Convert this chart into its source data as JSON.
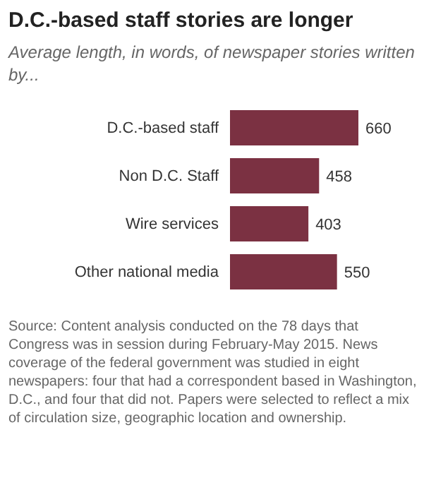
{
  "chart_data": {
    "type": "bar",
    "orientation": "horizontal",
    "title": "D.C.-based staff stories are longer",
    "subtitle": "Average length, in words, of newspaper stories written by...",
    "categories": [
      "D.C.-based staff",
      "Non D.C. Staff",
      "Wire services",
      "Other national media"
    ],
    "values": [
      660,
      458,
      403,
      550
    ],
    "color": "#7b3142",
    "data_labels": true,
    "annotations": [
      "Source: Content analysis conducted on the 78 days that Congress was in session during February-May 2015. News coverage of the federal government was studied in eight newspapers: four that had a correspondent based in Washington, D.C., and four that did not. Papers were selected to reflect a mix of circulation size, geographic location and ownership."
    ]
  }
}
